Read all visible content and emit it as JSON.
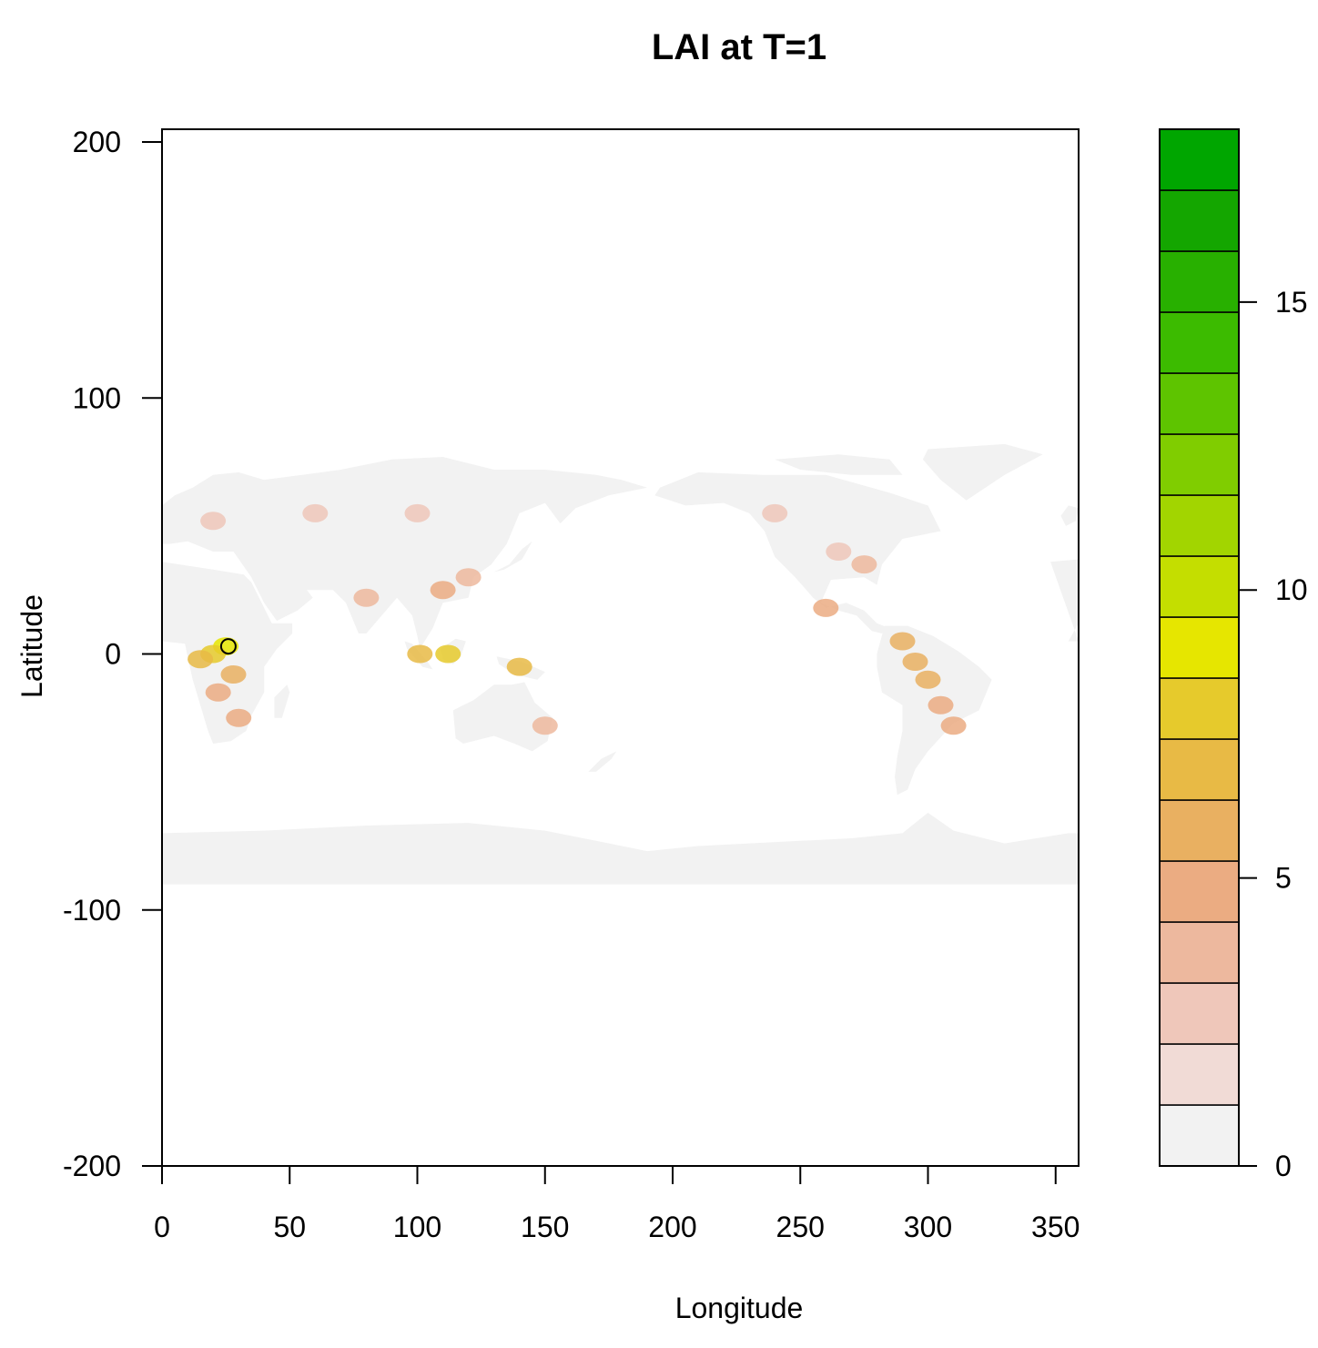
{
  "chart_data": {
    "type": "heatmap",
    "title": "LAI at T=1",
    "xlabel": "Longitude",
    "ylabel": "Latitude",
    "xlim": [
      0,
      359
    ],
    "ylim": [
      -200,
      205
    ],
    "x_ticks": [
      0,
      50,
      100,
      150,
      200,
      250,
      300,
      350
    ],
    "y_ticks": [
      -200,
      -100,
      0,
      100,
      200
    ],
    "grid": false,
    "colorbar": {
      "range": [
        0,
        18
      ],
      "ticks": [
        0,
        5,
        10,
        15
      ],
      "colors": [
        "#F2F2F2",
        "#F1DBD6",
        "#EFC7BA",
        "#EDB89E",
        "#EBAC82",
        "#E9B061",
        "#E8BA45",
        "#E6CA2C",
        "#E6E600",
        "#C4DE00",
        "#A2D500",
        "#80CD00",
        "#5EC400",
        "#3CBB00",
        "#28B000",
        "#14A600",
        "#00A600"
      ]
    },
    "regions": [
      {
        "name": "Antarctica",
        "lai": 0.3,
        "polygon": [
          [
            0,
            -70
          ],
          [
            40,
            -69
          ],
          [
            80,
            -67
          ],
          [
            120,
            -66
          ],
          [
            150,
            -69
          ],
          [
            170,
            -73
          ],
          [
            190,
            -77
          ],
          [
            210,
            -75
          ],
          [
            230,
            -74
          ],
          [
            250,
            -73
          ],
          [
            270,
            -72
          ],
          [
            290,
            -70
          ],
          [
            300,
            -62
          ],
          [
            310,
            -69
          ],
          [
            330,
            -74
          ],
          [
            355,
            -70
          ],
          [
            359,
            -70
          ],
          [
            359,
            -90
          ],
          [
            0,
            -90
          ]
        ]
      },
      {
        "name": "Greenland",
        "lai": 0.3,
        "polygon": [
          [
            300,
            80
          ],
          [
            330,
            82
          ],
          [
            345,
            78
          ],
          [
            330,
            70
          ],
          [
            315,
            60
          ],
          [
            305,
            68
          ],
          [
            298,
            76
          ]
        ]
      },
      {
        "name": "Canadian Arctic",
        "lai": 0.3,
        "polygon": [
          [
            240,
            76
          ],
          [
            265,
            78
          ],
          [
            285,
            76
          ],
          [
            290,
            70
          ],
          [
            270,
            70
          ],
          [
            250,
            72
          ]
        ]
      },
      {
        "name": "North America",
        "lai": 0.5,
        "polygon": [
          [
            195,
            65
          ],
          [
            210,
            71
          ],
          [
            235,
            70
          ],
          [
            260,
            70
          ],
          [
            285,
            63
          ],
          [
            300,
            58
          ],
          [
            305,
            48
          ],
          [
            290,
            45
          ],
          [
            282,
            35
          ],
          [
            280,
            27
          ],
          [
            275,
            30
          ],
          [
            262,
            29
          ],
          [
            258,
            20
          ],
          [
            265,
            17
          ],
          [
            272,
            15
          ],
          [
            278,
            9
          ],
          [
            282,
            8
          ],
          [
            285,
            10
          ],
          [
            280,
            12
          ],
          [
            275,
            17
          ],
          [
            268,
            20
          ],
          [
            260,
            18
          ],
          [
            255,
            22
          ],
          [
            248,
            30
          ],
          [
            240,
            38
          ],
          [
            236,
            48
          ],
          [
            230,
            55
          ],
          [
            220,
            59
          ],
          [
            205,
            58
          ],
          [
            193,
            62
          ]
        ]
      },
      {
        "name": "South America",
        "lai": 0.5,
        "polygon": [
          [
            283,
            11
          ],
          [
            292,
            11
          ],
          [
            302,
            7
          ],
          [
            312,
            1
          ],
          [
            320,
            -5
          ],
          [
            325,
            -10
          ],
          [
            320,
            -22
          ],
          [
            310,
            -27
          ],
          [
            300,
            -38
          ],
          [
            295,
            -45
          ],
          [
            292,
            -53
          ],
          [
            288,
            -55
          ],
          [
            287,
            -48
          ],
          [
            288,
            -40
          ],
          [
            290,
            -30
          ],
          [
            290,
            -20
          ],
          [
            282,
            -15
          ],
          [
            280,
            -5
          ],
          [
            280,
            0
          ]
        ]
      },
      {
        "name": "Africa",
        "lai": 0.5,
        "polygon": [
          [
            348,
            36
          ],
          [
            359,
            37
          ],
          [
            359,
            12
          ],
          [
            355,
            5
          ],
          [
            359,
            5
          ]
        ]
      },
      {
        "name": "Africa east",
        "lai": 0.5,
        "polygon": [
          [
            0,
            36
          ],
          [
            20,
            33
          ],
          [
            32,
            31
          ],
          [
            35,
            28
          ],
          [
            43,
            12
          ],
          [
            51,
            12
          ],
          [
            51,
            8
          ],
          [
            45,
            2
          ],
          [
            40,
            -5
          ],
          [
            40,
            -15
          ],
          [
            35,
            -24
          ],
          [
            33,
            -30
          ],
          [
            27,
            -34
          ],
          [
            20,
            -35
          ],
          [
            18,
            -30
          ],
          [
            15,
            -20
          ],
          [
            12,
            -10
          ],
          [
            10,
            -1
          ],
          [
            9,
            4
          ],
          [
            0,
            5
          ]
        ]
      },
      {
        "name": "Madagascar",
        "lai": 0.6,
        "polygon": [
          [
            44,
            -25
          ],
          [
            47,
            -25
          ],
          [
            50,
            -15
          ],
          [
            49,
            -12
          ],
          [
            44,
            -17
          ]
        ]
      },
      {
        "name": "Europe",
        "lai": 0.5,
        "polygon": [
          [
            0,
            43
          ],
          [
            0,
            58
          ],
          [
            5,
            62
          ],
          [
            12,
            65
          ],
          [
            20,
            70
          ],
          [
            30,
            71
          ],
          [
            40,
            68
          ],
          [
            55,
            70
          ],
          [
            60,
            66
          ],
          [
            70,
            70
          ],
          [
            0,
            0
          ]
        ]
      },
      {
        "name": "Eurasia",
        "lai": 0.5,
        "polygon": [
          [
            0,
            43
          ],
          [
            5,
            50
          ],
          [
            10,
            56
          ],
          [
            20,
            60
          ],
          [
            25,
            70
          ],
          [
            40,
            68
          ],
          [
            55,
            70
          ],
          [
            70,
            72
          ],
          [
            90,
            76
          ],
          [
            110,
            77
          ],
          [
            130,
            72
          ],
          [
            150,
            72
          ],
          [
            170,
            70
          ],
          [
            180,
            68
          ],
          [
            190,
            65
          ],
          [
            175,
            62
          ],
          [
            162,
            57
          ],
          [
            156,
            51
          ],
          [
            150,
            59
          ],
          [
            140,
            55
          ],
          [
            135,
            43
          ],
          [
            129,
            35
          ],
          [
            122,
            30
          ],
          [
            120,
            22
          ],
          [
            110,
            20
          ],
          [
            106,
            10
          ],
          [
            101,
            2
          ],
          [
            100,
            7
          ],
          [
            98,
            15
          ],
          [
            92,
            22
          ],
          [
            80,
            8
          ],
          [
            77,
            8
          ],
          [
            72,
            20
          ],
          [
            67,
            25
          ],
          [
            57,
            25
          ],
          [
            50,
            30
          ],
          [
            56,
            26
          ],
          [
            59,
            22
          ],
          [
            53,
            17
          ],
          [
            45,
            13
          ],
          [
            40,
            20
          ],
          [
            35,
            30
          ],
          [
            28,
            40
          ],
          [
            20,
            40
          ],
          [
            10,
            44
          ],
          [
            3,
            43
          ]
        ]
      },
      {
        "name": "Arabia",
        "lai": 0.3,
        "polygon": [
          [
            35,
            30
          ],
          [
            40,
            20
          ],
          [
            45,
            13
          ],
          [
            53,
            17
          ],
          [
            59,
            22
          ],
          [
            56,
            26
          ],
          [
            50,
            30
          ],
          [
            45,
            30
          ]
        ]
      },
      {
        "name": "Australia",
        "lai": 0.4,
        "polygon": [
          [
            114,
            -22
          ],
          [
            122,
            -18
          ],
          [
            130,
            -12
          ],
          [
            137,
            -12
          ],
          [
            142,
            -11
          ],
          [
            146,
            -19
          ],
          [
            153,
            -25
          ],
          [
            151,
            -34
          ],
          [
            145,
            -38
          ],
          [
            138,
            -35
          ],
          [
            130,
            -32
          ],
          [
            118,
            -35
          ],
          [
            115,
            -33
          ]
        ]
      },
      {
        "name": "Borneo",
        "lai": 0.6,
        "polygon": [
          [
            109,
            2
          ],
          [
            115,
            6
          ],
          [
            119,
            5
          ],
          [
            117,
            -1
          ],
          [
            114,
            -4
          ],
          [
            110,
            -2
          ]
        ]
      },
      {
        "name": "Sumatra",
        "lai": 0.6,
        "polygon": [
          [
            95,
            5
          ],
          [
            98,
            4
          ],
          [
            104,
            -3
          ],
          [
            106,
            -6
          ],
          [
            102,
            -5
          ],
          [
            96,
            2
          ]
        ]
      },
      {
        "name": "New Guinea",
        "lai": 0.6,
        "polygon": [
          [
            131,
            -1
          ],
          [
            141,
            -3
          ],
          [
            150,
            -7
          ],
          [
            147,
            -10
          ],
          [
            138,
            -8
          ],
          [
            132,
            -4
          ]
        ]
      },
      {
        "name": "Japan",
        "lai": 0.5,
        "polygon": [
          [
            130,
            32
          ],
          [
            136,
            35
          ],
          [
            141,
            41
          ],
          [
            145,
            44
          ],
          [
            141,
            37
          ],
          [
            134,
            33
          ]
        ]
      },
      {
        "name": "New Zealand",
        "lai": 0.6,
        "polygon": [
          [
            167,
            -46
          ],
          [
            172,
            -41
          ],
          [
            178,
            -38
          ],
          [
            176,
            -41
          ],
          [
            170,
            -46
          ]
        ]
      },
      {
        "name": "British Isles",
        "lai": 0.5,
        "polygon": [
          [
            354,
            50
          ],
          [
            358,
            52
          ],
          [
            359,
            57
          ],
          [
            355,
            58
          ],
          [
            352,
            54
          ]
        ]
      }
    ],
    "hotspots": [
      {
        "lon": 25,
        "lat": 3,
        "lai": 9
      },
      {
        "lon": 20,
        "lat": 0,
        "lai": 8
      },
      {
        "lon": 15,
        "lat": -2,
        "lai": 7
      },
      {
        "lon": 28,
        "lat": -8,
        "lai": 6
      },
      {
        "lon": 22,
        "lat": -15,
        "lai": 5
      },
      {
        "lon": 30,
        "lat": -25,
        "lai": 5
      },
      {
        "lon": 295,
        "lat": -3,
        "lai": 6
      },
      {
        "lon": 300,
        "lat": -10,
        "lai": 6
      },
      {
        "lon": 305,
        "lat": -20,
        "lai": 5
      },
      {
        "lon": 290,
        "lat": 5,
        "lai": 6
      },
      {
        "lon": 310,
        "lat": -28,
        "lai": 5
      },
      {
        "lon": 112,
        "lat": 0,
        "lai": 8
      },
      {
        "lon": 101,
        "lat": 0,
        "lai": 7
      },
      {
        "lon": 140,
        "lat": -5,
        "lai": 7
      },
      {
        "lon": 110,
        "lat": 25,
        "lai": 5
      },
      {
        "lon": 120,
        "lat": 30,
        "lai": 4
      },
      {
        "lon": 80,
        "lat": 22,
        "lai": 4
      },
      {
        "lon": 275,
        "lat": 35,
        "lai": 4
      },
      {
        "lon": 265,
        "lat": 40,
        "lai": 3
      },
      {
        "lon": 260,
        "lat": 18,
        "lai": 5
      },
      {
        "lon": 150,
        "lat": -28,
        "lai": 4
      },
      {
        "lon": 20,
        "lat": 52,
        "lai": 3
      },
      {
        "lon": 60,
        "lat": 55,
        "lai": 3
      },
      {
        "lon": 100,
        "lat": 55,
        "lai": 3
      },
      {
        "lon": 240,
        "lat": 55,
        "lai": 3
      }
    ],
    "points": [
      {
        "lon": 26,
        "lat": 3
      }
    ]
  }
}
